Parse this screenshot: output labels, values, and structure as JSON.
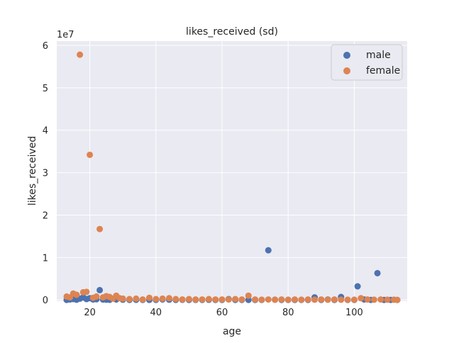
{
  "chart_data": {
    "type": "scatter",
    "title": "likes_received (sd)",
    "xlabel": "age",
    "ylabel": "likes_received",
    "y_multiplier_label": "1e7",
    "xlim": [
      10,
      116
    ],
    "ylim": [
      -300000,
      61000000
    ],
    "xticks": [
      20,
      40,
      60,
      80,
      100
    ],
    "yticks": [
      0,
      10000000,
      20000000,
      30000000,
      40000000,
      50000000,
      60000000
    ],
    "ytick_labels": [
      "0",
      "1",
      "2",
      "3",
      "4",
      "5",
      "6"
    ],
    "grid": true,
    "legend_position": "top-right",
    "colors": {
      "plot_bg": "#eaeaf2",
      "grid": "#ffffff",
      "male": "#4c72b0",
      "female": "#dd8452"
    },
    "series": [
      {
        "name": "male",
        "color": "#4c72b0",
        "points": [
          [
            13,
            0
          ],
          [
            14,
            100000
          ],
          [
            15,
            200000
          ],
          [
            16,
            50000
          ],
          [
            17,
            300000
          ],
          [
            18,
            600000
          ],
          [
            19,
            200000
          ],
          [
            20,
            400000
          ],
          [
            21,
            100000
          ],
          [
            22,
            150000
          ],
          [
            23,
            2300000
          ],
          [
            24,
            80000
          ],
          [
            25,
            50000
          ],
          [
            26,
            20000
          ],
          [
            28,
            100000
          ],
          [
            30,
            50000
          ],
          [
            32,
            0
          ],
          [
            34,
            20000
          ],
          [
            36,
            0
          ],
          [
            38,
            10000
          ],
          [
            40,
            0
          ],
          [
            42,
            100000
          ],
          [
            44,
            50000
          ],
          [
            46,
            0
          ],
          [
            48,
            20000
          ],
          [
            50,
            0
          ],
          [
            52,
            10000
          ],
          [
            54,
            0
          ],
          [
            56,
            30000
          ],
          [
            58,
            0
          ],
          [
            60,
            0
          ],
          [
            62,
            200000
          ],
          [
            64,
            0
          ],
          [
            66,
            0
          ],
          [
            68,
            0
          ],
          [
            70,
            0
          ],
          [
            72,
            0
          ],
          [
            74,
            11700000
          ],
          [
            76,
            50000
          ],
          [
            78,
            0
          ],
          [
            80,
            0
          ],
          [
            82,
            0
          ],
          [
            84,
            0
          ],
          [
            86,
            0
          ],
          [
            88,
            600000
          ],
          [
            90,
            0
          ],
          [
            92,
            100000
          ],
          [
            94,
            0
          ],
          [
            96,
            700000
          ],
          [
            98,
            0
          ],
          [
            100,
            0
          ],
          [
            101,
            3200000
          ],
          [
            103,
            100000
          ],
          [
            105,
            0
          ],
          [
            107,
            6300000
          ],
          [
            109,
            0
          ],
          [
            111,
            0
          ],
          [
            113,
            0
          ]
        ]
      },
      {
        "name": "female",
        "color": "#dd8452",
        "points": [
          [
            13,
            800000
          ],
          [
            14,
            600000
          ],
          [
            15,
            1500000
          ],
          [
            16,
            1200000
          ],
          [
            17,
            57800000
          ],
          [
            18,
            1800000
          ],
          [
            19,
            1900000
          ],
          [
            20,
            34200000
          ],
          [
            21,
            500000
          ],
          [
            22,
            800000
          ],
          [
            23,
            16700000
          ],
          [
            24,
            600000
          ],
          [
            25,
            900000
          ],
          [
            26,
            700000
          ],
          [
            27,
            300000
          ],
          [
            28,
            1000000
          ],
          [
            29,
            400000
          ],
          [
            30,
            300000
          ],
          [
            32,
            200000
          ],
          [
            34,
            300000
          ],
          [
            36,
            100000
          ],
          [
            38,
            500000
          ],
          [
            40,
            200000
          ],
          [
            42,
            300000
          ],
          [
            44,
            400000
          ],
          [
            46,
            200000
          ],
          [
            48,
            100000
          ],
          [
            50,
            200000
          ],
          [
            52,
            100000
          ],
          [
            54,
            100000
          ],
          [
            56,
            200000
          ],
          [
            58,
            100000
          ],
          [
            60,
            100000
          ],
          [
            62,
            100000
          ],
          [
            64,
            200000
          ],
          [
            66,
            100000
          ],
          [
            68,
            1000000
          ],
          [
            70,
            100000
          ],
          [
            72,
            50000
          ],
          [
            74,
            100000
          ],
          [
            76,
            50000
          ],
          [
            78,
            100000
          ],
          [
            80,
            50000
          ],
          [
            82,
            100000
          ],
          [
            84,
            50000
          ],
          [
            86,
            100000
          ],
          [
            88,
            50000
          ],
          [
            90,
            100000
          ],
          [
            92,
            50000
          ],
          [
            94,
            100000
          ],
          [
            96,
            50000
          ],
          [
            98,
            50000
          ],
          [
            100,
            50000
          ],
          [
            102,
            400000
          ],
          [
            104,
            100000
          ],
          [
            106,
            50000
          ],
          [
            108,
            100000
          ],
          [
            110,
            50000
          ],
          [
            112,
            50000
          ],
          [
            113,
            0
          ]
        ]
      }
    ]
  }
}
